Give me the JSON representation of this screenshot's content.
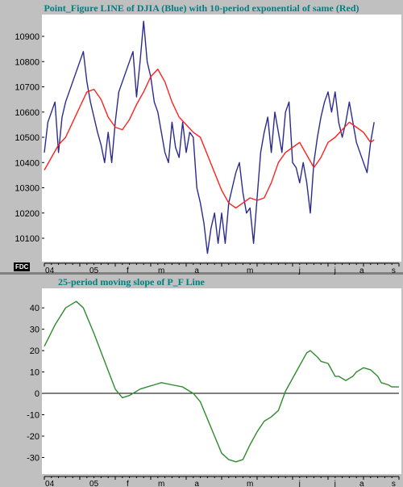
{
  "footer_badge": "FDC",
  "chart_data": [
    {
      "type": "line",
      "title": "Point_Figure LINE of DJIA (Blue) with 10-period exponential of same (Red)",
      "ylim": [
        10020,
        10980
      ],
      "yticks": [
        10100,
        10200,
        10300,
        10400,
        10500,
        10600,
        10700,
        10800,
        10900
      ],
      "xlim": [
        0,
        100
      ],
      "xticks": [
        {
          "x": 1.5,
          "label": "04"
        },
        {
          "x": 14,
          "label": "05"
        },
        {
          "x": 23.5,
          "label": "f"
        },
        {
          "x": 33,
          "label": "m"
        },
        {
          "x": 43,
          "label": "a"
        },
        {
          "x": 58,
          "label": "m"
        },
        {
          "x": 72,
          "label": "j"
        },
        {
          "x": 82,
          "label": "j"
        },
        {
          "x": 89.5,
          "label": "a"
        },
        {
          "x": 98.5,
          "label": "s"
        }
      ],
      "series": [
        {
          "color": "#2b2b8f",
          "values": [
            [
              0,
              10440
            ],
            [
              1,
              10560
            ],
            [
              2,
              10600
            ],
            [
              3,
              10640
            ],
            [
              4,
              10440
            ],
            [
              5,
              10580
            ],
            [
              6,
              10640
            ],
            [
              7,
              10680
            ],
            [
              8,
              10720
            ],
            [
              9,
              10760
            ],
            [
              10,
              10800
            ],
            [
              11,
              10840
            ],
            [
              12,
              10720
            ],
            [
              13,
              10640
            ],
            [
              14,
              10580
            ],
            [
              15,
              10520
            ],
            [
              16,
              10470
            ],
            [
              17,
              10400
            ],
            [
              18,
              10520
            ],
            [
              19,
              10400
            ],
            [
              20,
              10560
            ],
            [
              21,
              10680
            ],
            [
              22,
              10720
            ],
            [
              23,
              10760
            ],
            [
              24,
              10800
            ],
            [
              25,
              10840
            ],
            [
              26,
              10660
            ],
            [
              27,
              10800
            ],
            [
              28,
              10960
            ],
            [
              29,
              10800
            ],
            [
              30,
              10740
            ],
            [
              31,
              10640
            ],
            [
              32,
              10600
            ],
            [
              33,
              10520
            ],
            [
              34,
              10440
            ],
            [
              35,
              10400
            ],
            [
              36,
              10560
            ],
            [
              37,
              10460
            ],
            [
              38,
              10420
            ],
            [
              39,
              10560
            ],
            [
              40,
              10440
            ],
            [
              41,
              10520
            ],
            [
              42,
              10500
            ],
            [
              43,
              10300
            ],
            [
              44,
              10240
            ],
            [
              45,
              10160
            ],
            [
              46,
              10040
            ],
            [
              47,
              10140
            ],
            [
              48,
              10200
            ],
            [
              49,
              10080
            ],
            [
              50,
              10200
            ],
            [
              51,
              10080
            ],
            [
              52,
              10240
            ],
            [
              53,
              10300
            ],
            [
              54,
              10360
            ],
            [
              55,
              10400
            ],
            [
              56,
              10280
            ],
            [
              57,
              10200
            ],
            [
              58,
              10220
            ],
            [
              59,
              10080
            ],
            [
              60,
              10260
            ],
            [
              61,
              10440
            ],
            [
              62,
              10520
            ],
            [
              63,
              10580
            ],
            [
              64,
              10440
            ],
            [
              65,
              10600
            ],
            [
              66,
              10520
            ],
            [
              67,
              10440
            ],
            [
              68,
              10600
            ],
            [
              69,
              10640
            ],
            [
              70,
              10400
            ],
            [
              71,
              10380
            ],
            [
              72,
              10320
            ],
            [
              73,
              10400
            ],
            [
              74,
              10320
            ],
            [
              75,
              10200
            ],
            [
              76,
              10400
            ],
            [
              77,
              10500
            ],
            [
              78,
              10580
            ],
            [
              79,
              10640
            ],
            [
              80,
              10680
            ],
            [
              81,
              10600
            ],
            [
              82,
              10680
            ],
            [
              83,
              10560
            ],
            [
              84,
              10500
            ],
            [
              85,
              10560
            ],
            [
              86,
              10640
            ],
            [
              87,
              10560
            ],
            [
              88,
              10480
            ],
            [
              89,
              10440
            ],
            [
              90,
              10400
            ],
            [
              91,
              10360
            ],
            [
              92,
              10480
            ],
            [
              93,
              10560
            ]
          ]
        },
        {
          "color": "#ff2020",
          "values": [
            [
              0,
              10370
            ],
            [
              2,
              10420
            ],
            [
              4,
              10470
            ],
            [
              6,
              10500
            ],
            [
              8,
              10560
            ],
            [
              10,
              10620
            ],
            [
              12,
              10680
            ],
            [
              14,
              10690
            ],
            [
              16,
              10650
            ],
            [
              18,
              10580
            ],
            [
              20,
              10540
            ],
            [
              22,
              10530
            ],
            [
              24,
              10570
            ],
            [
              26,
              10630
            ],
            [
              28,
              10680
            ],
            [
              30,
              10740
            ],
            [
              32,
              10770
            ],
            [
              34,
              10720
            ],
            [
              36,
              10640
            ],
            [
              38,
              10580
            ],
            [
              40,
              10550
            ],
            [
              42,
              10520
            ],
            [
              44,
              10500
            ],
            [
              46,
              10430
            ],
            [
              48,
              10360
            ],
            [
              50,
              10290
            ],
            [
              52,
              10240
            ],
            [
              54,
              10220
            ],
            [
              56,
              10240
            ],
            [
              58,
              10260
            ],
            [
              60,
              10250
            ],
            [
              62,
              10260
            ],
            [
              64,
              10320
            ],
            [
              66,
              10400
            ],
            [
              68,
              10440
            ],
            [
              70,
              10460
            ],
            [
              72,
              10480
            ],
            [
              74,
              10430
            ],
            [
              76,
              10380
            ],
            [
              78,
              10420
            ],
            [
              80,
              10480
            ],
            [
              82,
              10500
            ],
            [
              84,
              10530
            ],
            [
              86,
              10560
            ],
            [
              88,
              10540
            ],
            [
              90,
              10520
            ],
            [
              92,
              10480
            ],
            [
              93,
              10490
            ]
          ]
        }
      ]
    },
    {
      "type": "line",
      "title": "25-period moving slope of P_F Line",
      "ylim": [
        -37,
        48
      ],
      "yticks": [
        -30,
        -20,
        -10,
        0,
        10,
        20,
        30,
        40
      ],
      "xlim": [
        0,
        100
      ],
      "xticks": [
        {
          "x": 1.5,
          "label": "04"
        },
        {
          "x": 14,
          "label": "05"
        },
        {
          "x": 23.5,
          "label": "f"
        },
        {
          "x": 33,
          "label": "m"
        },
        {
          "x": 43,
          "label": "a"
        },
        {
          "x": 58,
          "label": "m"
        },
        {
          "x": 72,
          "label": "j"
        },
        {
          "x": 82,
          "label": "j"
        },
        {
          "x": 89.5,
          "label": "a"
        },
        {
          "x": 98.5,
          "label": "s"
        }
      ],
      "series": [
        {
          "color": "#2e8b2e",
          "values": [
            [
              0,
              22
            ],
            [
              3,
              32
            ],
            [
              6,
              40
            ],
            [
              9,
              43
            ],
            [
              11,
              40
            ],
            [
              14,
              28
            ],
            [
              17,
              15
            ],
            [
              20,
              2
            ],
            [
              22,
              -2
            ],
            [
              24,
              -1
            ],
            [
              27,
              2
            ],
            [
              29,
              3
            ],
            [
              31,
              4
            ],
            [
              33,
              5
            ],
            [
              36,
              4
            ],
            [
              39,
              3
            ],
            [
              42,
              0
            ],
            [
              44,
              -4
            ],
            [
              46,
              -12
            ],
            [
              48,
              -20
            ],
            [
              50,
              -28
            ],
            [
              52,
              -31
            ],
            [
              54,
              -32
            ],
            [
              56,
              -31
            ],
            [
              58,
              -24
            ],
            [
              60,
              -18
            ],
            [
              62,
              -13
            ],
            [
              64,
              -11
            ],
            [
              66,
              -8
            ],
            [
              68,
              1
            ],
            [
              70,
              7
            ],
            [
              72,
              13
            ],
            [
              74,
              19
            ],
            [
              75,
              20
            ],
            [
              77,
              17
            ],
            [
              78,
              15
            ],
            [
              80,
              14
            ],
            [
              81,
              11
            ],
            [
              82,
              8
            ],
            [
              83,
              8
            ],
            [
              85,
              6
            ],
            [
              87,
              8
            ],
            [
              88,
              10
            ],
            [
              90,
              12
            ],
            [
              92,
              11
            ],
            [
              94,
              8
            ],
            [
              95,
              5
            ],
            [
              97,
              4
            ],
            [
              98,
              3
            ],
            [
              100,
              3
            ]
          ]
        }
      ],
      "reference_line": 0
    }
  ]
}
